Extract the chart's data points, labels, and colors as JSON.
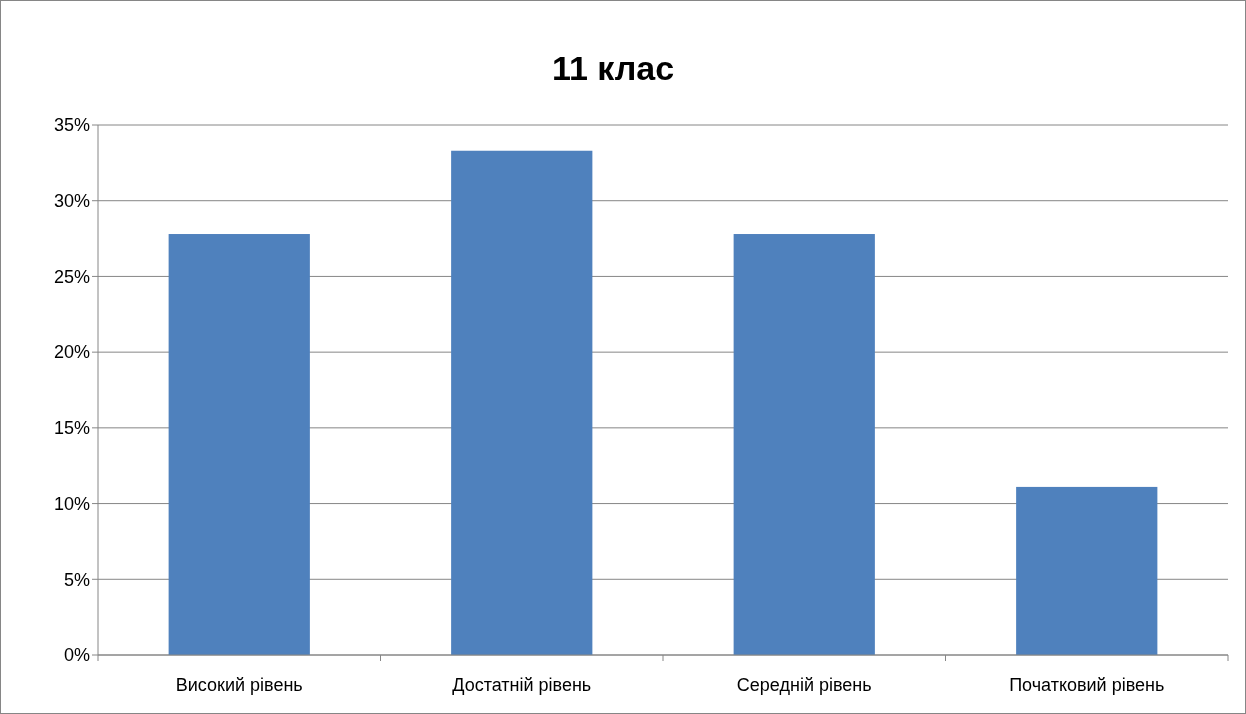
{
  "chart_data": {
    "type": "bar",
    "title": "11 клас",
    "categories": [
      "Високий рівень",
      "Достатній рівень",
      "Середній рівень",
      "Початковий рівень"
    ],
    "values": [
      27.8,
      33.3,
      27.8,
      11.1
    ],
    "color": "#4f81bd",
    "ylim": [
      0,
      35
    ],
    "yticks": [
      {
        "value": 0,
        "label": "0%"
      },
      {
        "value": 5,
        "label": "5%"
      },
      {
        "value": 10,
        "label": "10%"
      },
      {
        "value": 15,
        "label": "15%"
      },
      {
        "value": 20,
        "label": "20%"
      },
      {
        "value": 25,
        "label": "25%"
      },
      {
        "value": 30,
        "label": "30%"
      },
      {
        "value": 35,
        "label": "35%"
      }
    ],
    "grid": "y"
  }
}
